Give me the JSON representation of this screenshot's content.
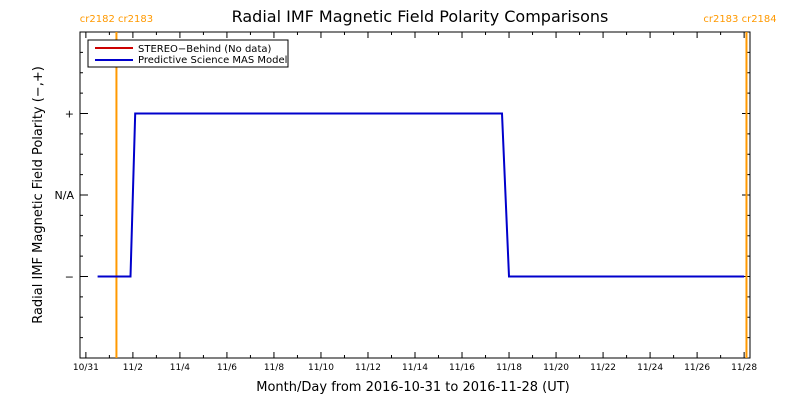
{
  "chart_data": {
    "type": "line",
    "title": "Radial IMF Magnetic Field Polarity Comparisons",
    "xlabel": "Month/Day from 2016-10-31 to 2016-11-28 (UT)",
    "ylabel": "Radial IMF Magnetic Field Polarity (−,+)",
    "x_start": "2016-10-31",
    "x_end": "2016-11-28",
    "x_tick_labels": [
      "10/31",
      "11/2",
      "11/4",
      "11/6",
      "11/8",
      "11/10",
      "11/12",
      "11/14",
      "11/16",
      "11/18",
      "11/20",
      "11/22",
      "11/24",
      "11/26",
      "11/28"
    ],
    "y_tick_labels": [
      "+",
      "N/A",
      "−"
    ],
    "y_values_meaning": {
      "plus": 1,
      "na": 0,
      "minus": -1
    },
    "ylim": [
      -2,
      2
    ],
    "carrington_markers": [
      {
        "date": "2016-11-01.3",
        "label": "cr2182 cr2183"
      },
      {
        "date": "2016-11-28.1",
        "label": "cr2183 cr2184"
      }
    ],
    "legend": {
      "position": "top-left",
      "entries": [
        {
          "name": "STEREO−Behind (No data)",
          "color": "#cc0000"
        },
        {
          "name": "Predictive Science MAS Model",
          "color": "#0000cc"
        }
      ]
    },
    "series": [
      {
        "name": "Predictive Science MAS Model",
        "color": "#0000cc",
        "x": [
          "2016-10-31.5",
          "2016-11-01.3",
          "2016-11-01.9",
          "2016-11-02.1",
          "2016-11-17.7",
          "2016-11-18.0",
          "2016-11-28.0"
        ],
        "values": [
          -1,
          -1,
          -1,
          1,
          1,
          -1,
          -1
        ]
      }
    ],
    "marker_color": "#ff9900"
  }
}
